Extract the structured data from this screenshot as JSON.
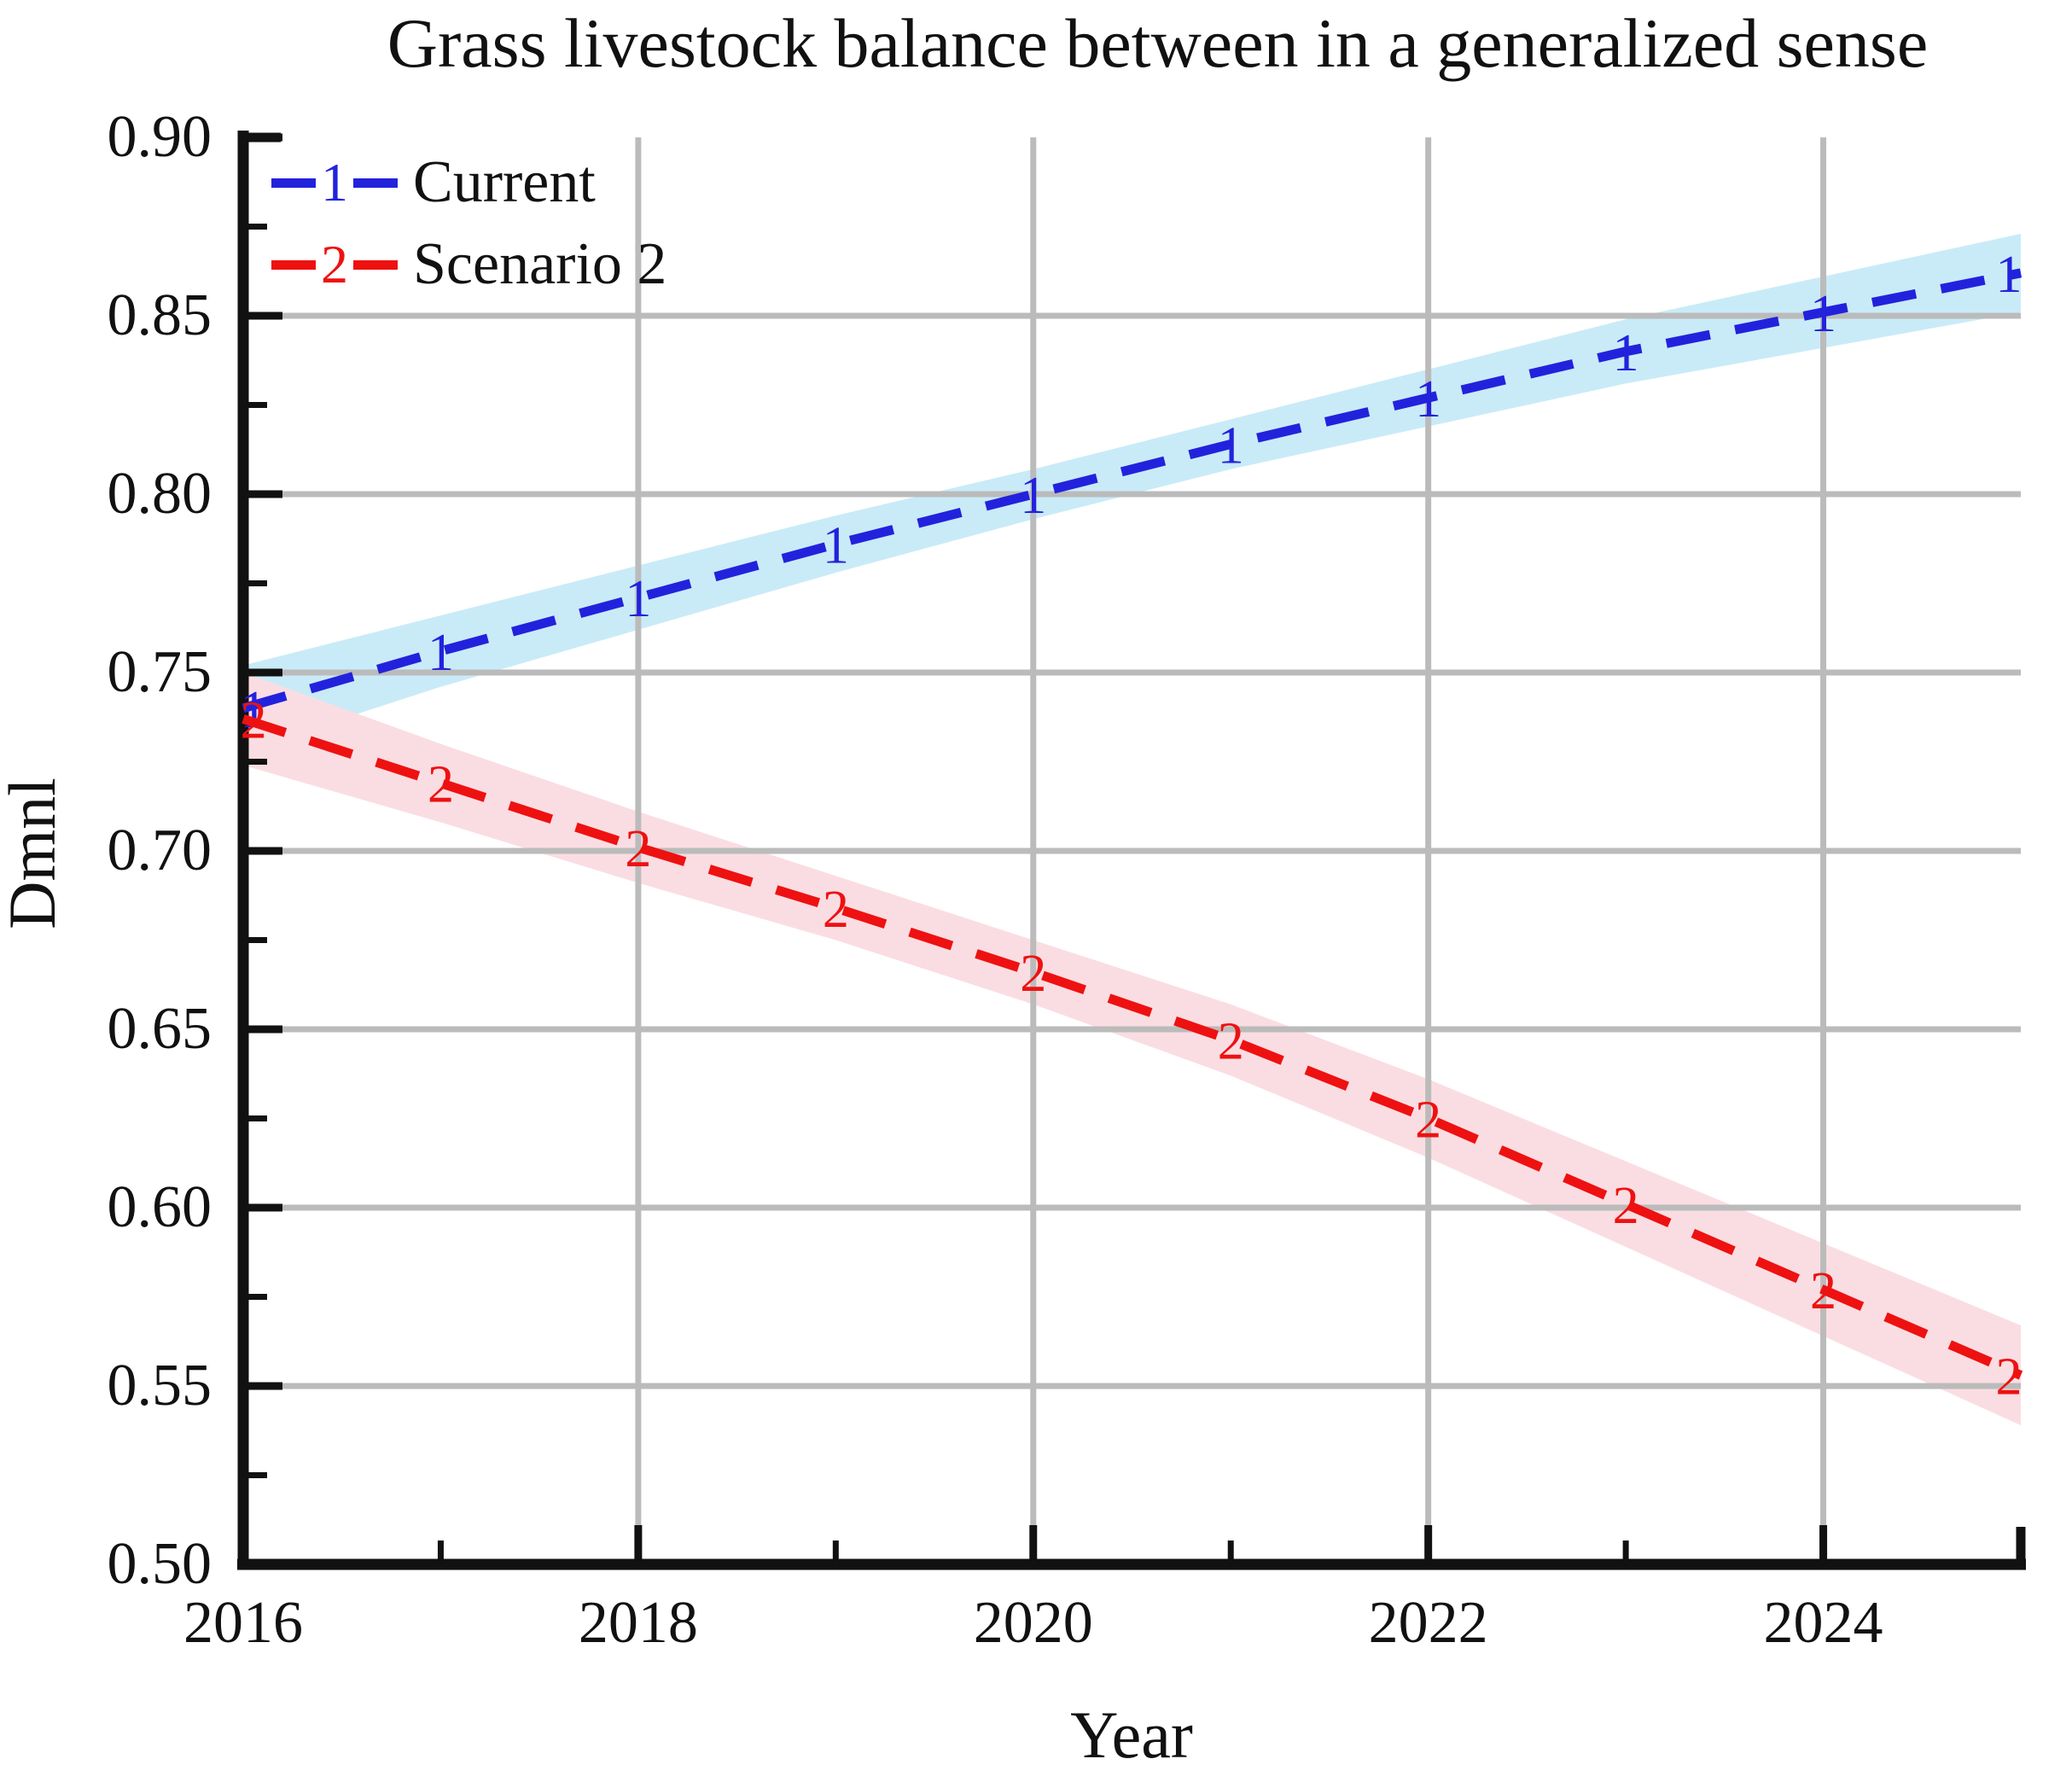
{
  "title": "Grass livestock balance between in a generalized sense",
  "axes": {
    "y_label": "Dmnl",
    "x_label": "Year",
    "y_tick_labels": [
      "0.90",
      "0.85",
      "0.80",
      "0.75",
      "0.70",
      "0.65",
      "0.60",
      "0.55",
      "0.50"
    ],
    "x_tick_labels": [
      "2016",
      "2018",
      "2020",
      "2022",
      "2024"
    ]
  },
  "legend": [
    {
      "marker": "1",
      "label": "Current"
    },
    {
      "marker": "2",
      "label": "Scenario 2"
    }
  ],
  "colors": {
    "grid": "#bbbbbb",
    "axis": "#111111",
    "text": "#111111",
    "background": "#ffffff",
    "current_line": "#2222dd",
    "current_band": "#c9ebf7",
    "scenario2_line": "#ee1111",
    "scenario2_band": "#fadde2"
  },
  "chart_data": {
    "type": "line",
    "title": "Grass livestock balance between in a generalized sense",
    "xlabel": "Year",
    "ylabel": "Dmnl",
    "xlim": [
      2016,
      2025
    ],
    "ylim": [
      0.5,
      0.9
    ],
    "y_tick_step": 0.05,
    "x_major_ticks": [
      2016,
      2018,
      2020,
      2022,
      2024
    ],
    "x_minor_ticks": [
      2017,
      2019,
      2021,
      2023,
      2025
    ],
    "grid": true,
    "legend_position": "top-left",
    "x": [
      2016,
      2017,
      2018,
      2019,
      2020,
      2021,
      2022,
      2023,
      2024,
      2025
    ],
    "series": [
      {
        "name": "Current",
        "marker": "1",
        "color": "#2222dd",
        "band_color": "#c9ebf7",
        "values": [
          0.74,
          0.756,
          0.771,
          0.786,
          0.8,
          0.814,
          0.827,
          0.84,
          0.851,
          0.862
        ],
        "band_halfwidth": [
          0.012,
          0.01,
          0.009,
          0.008,
          0.007,
          0.007,
          0.008,
          0.009,
          0.01,
          0.011
        ]
      },
      {
        "name": "Scenario 2",
        "marker": "2",
        "color": "#ee1111",
        "band_color": "#fadde2",
        "values": [
          0.737,
          0.719,
          0.701,
          0.684,
          0.666,
          0.647,
          0.625,
          0.601,
          0.577,
          0.553
        ],
        "band_halfwidth": [
          0.013,
          0.011,
          0.01,
          0.009,
          0.009,
          0.01,
          0.011,
          0.012,
          0.013,
          0.014
        ]
      }
    ]
  }
}
